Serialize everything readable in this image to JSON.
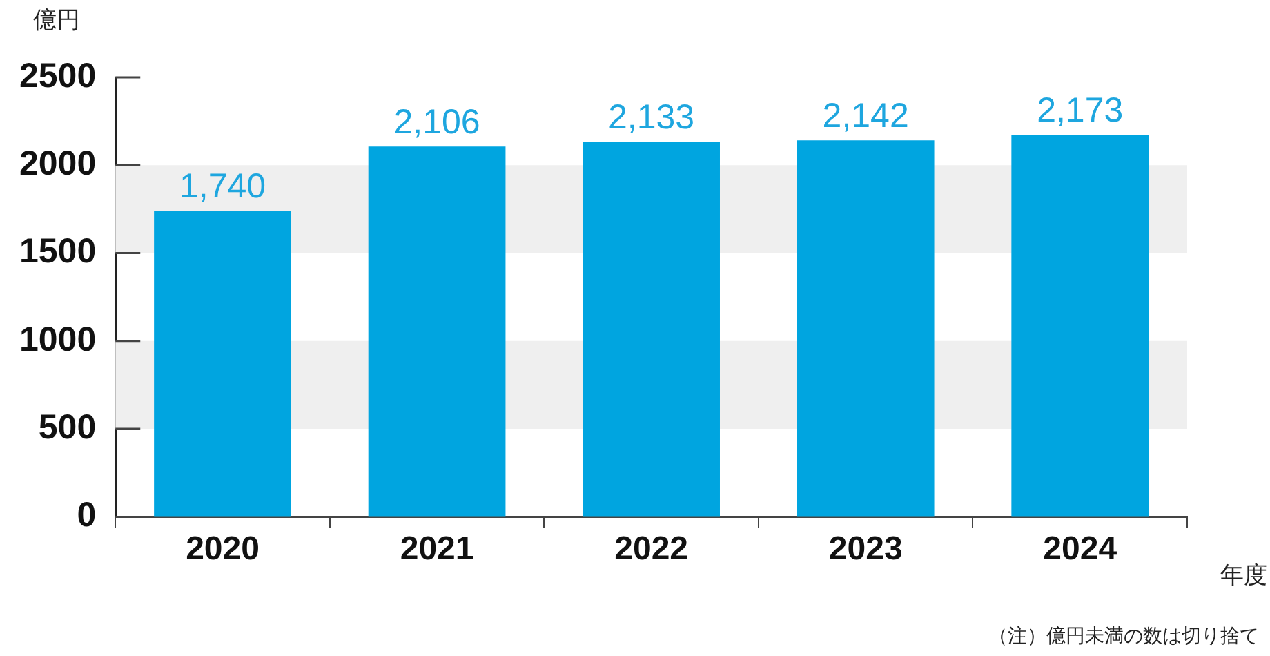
{
  "chart_data": {
    "type": "bar",
    "ylabel": "億円",
    "xlabel": "年度",
    "categories": [
      "2020",
      "2021",
      "2022",
      "2023",
      "2024"
    ],
    "values": [
      1740,
      2106,
      2133,
      2142,
      2173
    ],
    "value_labels": [
      "1,740",
      "2,106",
      "2,133",
      "2,142",
      "2,173"
    ],
    "color": "#00a5e0",
    "ylim": [
      0,
      2500
    ],
    "yticks": [
      0,
      500,
      1000,
      1500,
      2000,
      2500
    ],
    "bands": [
      {
        "axis": "y",
        "from": 500,
        "to": 1000,
        "color": "#efefef"
      },
      {
        "axis": "y",
        "from": 1500,
        "to": 2000,
        "color": "#efefef"
      }
    ],
    "annotations": [
      "（注）億円未満の数は切り捨て"
    ],
    "grid": false,
    "legend": false
  }
}
